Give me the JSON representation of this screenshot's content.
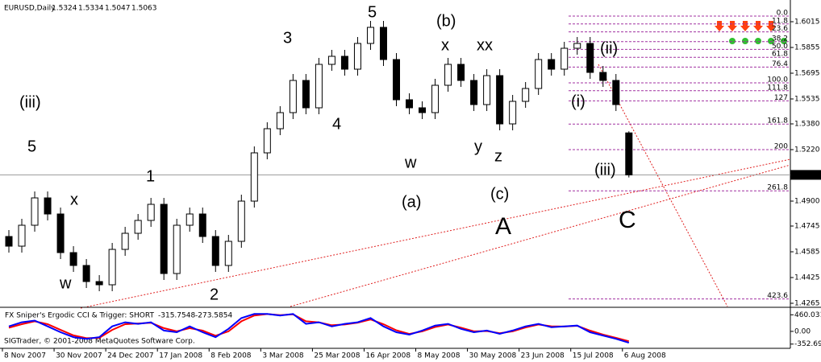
{
  "chart_data": [
    {
      "type": "candlestick",
      "symbol": "EURUSD,Daily",
      "candles": {
        "x": [
          2,
          6,
          10,
          14,
          18,
          22,
          26,
          30,
          34,
          38,
          42,
          46,
          50,
          54,
          58,
          62,
          66,
          70,
          74,
          78,
          82,
          86,
          90,
          94,
          98,
          102,
          106,
          110,
          114,
          118,
          122,
          126,
          130,
          134,
          138,
          142,
          146,
          150,
          154,
          158,
          162,
          166,
          170,
          174,
          178,
          182,
          186,
          190,
          194
        ],
        "open": [
          1.468,
          1.462,
          1.475,
          1.492,
          1.482,
          1.458,
          1.45,
          1.44,
          1.438,
          1.46,
          1.47,
          1.478,
          1.488,
          1.445,
          1.475,
          1.482,
          1.468,
          1.45,
          1.465,
          1.49,
          1.52,
          1.535,
          1.545,
          1.565,
          1.548,
          1.575,
          1.58,
          1.572,
          1.588,
          1.598,
          1.578,
          1.553,
          1.548,
          1.545,
          1.562,
          1.575,
          1.565,
          1.55,
          1.568,
          1.538,
          1.552,
          1.56,
          1.578,
          1.572,
          1.585,
          1.588,
          1.57,
          1.565,
          1.5324
        ],
        "high": [
          1.472,
          1.479,
          1.496,
          1.496,
          1.486,
          1.462,
          1.454,
          1.444,
          1.464,
          1.474,
          1.482,
          1.492,
          1.492,
          1.479,
          1.486,
          1.486,
          1.472,
          1.469,
          1.494,
          1.524,
          1.539,
          1.549,
          1.569,
          1.569,
          1.579,
          1.584,
          1.584,
          1.592,
          1.602,
          1.602,
          1.582,
          1.557,
          1.552,
          1.566,
          1.579,
          1.579,
          1.569,
          1.572,
          1.572,
          1.556,
          1.564,
          1.582,
          1.582,
          1.589,
          1.592,
          1.592,
          1.574,
          1.569,
          1.5334
        ],
        "low": [
          1.458,
          1.458,
          1.471,
          1.478,
          1.454,
          1.446,
          1.436,
          1.434,
          1.434,
          1.456,
          1.466,
          1.474,
          1.441,
          1.441,
          1.471,
          1.464,
          1.446,
          1.446,
          1.461,
          1.486,
          1.516,
          1.531,
          1.541,
          1.544,
          1.544,
          1.571,
          1.568,
          1.568,
          1.584,
          1.574,
          1.549,
          1.544,
          1.541,
          1.541,
          1.558,
          1.561,
          1.546,
          1.546,
          1.534,
          1.534,
          1.548,
          1.556,
          1.568,
          1.568,
          1.581,
          1.566,
          1.561,
          1.546,
          1.5047
        ],
        "close": [
          1.462,
          1.475,
          1.492,
          1.482,
          1.458,
          1.45,
          1.44,
          1.438,
          1.46,
          1.47,
          1.478,
          1.488,
          1.445,
          1.475,
          1.482,
          1.468,
          1.45,
          1.465,
          1.49,
          1.52,
          1.535,
          1.545,
          1.565,
          1.548,
          1.575,
          1.58,
          1.572,
          1.588,
          1.598,
          1.578,
          1.553,
          1.548,
          1.545,
          1.562,
          1.575,
          1.565,
          1.55,
          1.568,
          1.538,
          1.552,
          1.56,
          1.578,
          1.572,
          1.585,
          1.588,
          1.57,
          1.565,
          1.55,
          1.5063
        ]
      },
      "bull_color": "#ffffff",
      "bear_color": "#000000",
      "xlim": [
        0,
        244
      ],
      "xticks": [
        {
          "value": 0,
          "label": "8 Nov 2007"
        },
        {
          "value": 16,
          "label": "30 Nov 2007"
        },
        {
          "value": 32,
          "label": "24 Dec 2007"
        },
        {
          "value": 48,
          "label": "17 Jan 2008"
        },
        {
          "value": 64,
          "label": "8 Feb 2008"
        },
        {
          "value": 80,
          "label": "3 Mar 2008"
        },
        {
          "value": 96,
          "label": "25 Mar 2008"
        },
        {
          "value": 112,
          "label": "16 Apr 2008"
        },
        {
          "value": 128,
          "label": "8 May 2008"
        },
        {
          "value": 144,
          "label": "30 May 2008"
        },
        {
          "value": 160,
          "label": "23 Jun 2008"
        },
        {
          "value": 176,
          "label": "15 Jul 2008"
        },
        {
          "value": 192,
          "label": "6 Aug 2008"
        }
      ],
      "ylim": [
        1.4245,
        1.615
      ],
      "yticks": [
        1.6015,
        1.5855,
        1.5695,
        1.5535,
        {
          "value": 1.538,
          "label": "1.5380"
        },
        {
          "value": 1.522,
          "label": "1.5220"
        },
        {
          "value": 1.49,
          "label": "1.4900"
        },
        1.4745,
        1.4585,
        1.4425,
        1.4265
      ],
      "fib_levels": {
        "labels": [
          "0.0",
          "11.8",
          "23.6",
          "38.2",
          "50.0",
          "61.8",
          "76.4",
          "100.0",
          "111.8",
          "127",
          "161.8",
          "200",
          "261.8",
          "423.6"
        ],
        "prices": [
          1.605,
          1.6001,
          1.5952,
          1.5891,
          1.5843,
          1.5794,
          1.5733,
          1.5635,
          1.5586,
          1.5523,
          1.5379,
          1.522,
          1.4964,
          1.4292
        ],
        "color": "#a030a0"
      },
      "annotations": [
        {
          "text": "(iii)",
          "color": "#1010ff"
        },
        {
          "text": "5",
          "color": "#228b22"
        },
        {
          "text": "x",
          "color": "#228b22"
        },
        {
          "text": "w",
          "color": "#228b22"
        },
        {
          "text": "1",
          "color": "#228b22"
        },
        {
          "text": "2",
          "color": "#228b22"
        },
        {
          "text": "3",
          "color": "#228b22"
        },
        {
          "text": "4",
          "color": "#228b22"
        },
        {
          "text": "5",
          "color": "#228b22"
        },
        {
          "text": "w",
          "color": "#228b22"
        },
        {
          "text": "(a)",
          "color": "#1010ff"
        },
        {
          "text": "(b)",
          "color": "#1010ff"
        },
        {
          "text": "x",
          "color": "#228b22"
        },
        {
          "text": "xx",
          "color": "#228b22"
        },
        {
          "text": "y",
          "color": "#228b22"
        },
        {
          "text": "z",
          "color": "#228b22"
        },
        {
          "text": "(c)",
          "color": "#1010ff"
        },
        {
          "text": "A",
          "color": "#ff0000"
        },
        {
          "text": "(ii)",
          "color": "#1010ff"
        },
        {
          "text": "(i)",
          "color": "#1010ff"
        },
        {
          "text": "(iii)",
          "color": "#1010ff"
        },
        {
          "text": "C",
          "color": "#ff0000"
        }
      ],
      "copyright": "SIGTrader, © 2001-2008 MetaQuotes Software Corp."
    },
    {
      "type": "line",
      "title": "FX Sniper's Ergodic CCI & Trigger: SHORT",
      "x": [
        2,
        6,
        10,
        14,
        18,
        22,
        26,
        30,
        34,
        38,
        42,
        46,
        50,
        54,
        58,
        62,
        66,
        70,
        74,
        78,
        82,
        86,
        90,
        94,
        98,
        102,
        106,
        110,
        114,
        118,
        122,
        126,
        130,
        134,
        138,
        142,
        146,
        150,
        154,
        158,
        162,
        166,
        170,
        174,
        178,
        182,
        186,
        190,
        194
      ],
      "series": [
        {
          "color": "#0000ff",
          "values": [
            138,
            253,
            299,
            138,
            -23,
            -161,
            -207,
            -161,
            138,
            253,
            207,
            253,
            23,
            -23,
            138,
            -23,
            -161,
            69,
            368,
            483,
            483,
            437,
            483,
            207,
            253,
            138,
            207,
            253,
            368,
            138,
            -23,
            -92,
            23,
            161,
            207,
            69,
            -23,
            23,
            -69,
            23,
            138,
            207,
            115,
            138,
            161,
            -23,
            -115,
            -207,
            -315.7548
          ]
        },
        {
          "color": "#ff0000",
          "values": [
            100,
            200,
            280,
            200,
            40,
            -110,
            -190,
            -180,
            40,
            200,
            220,
            240,
            90,
            0,
            90,
            20,
            -120,
            0,
            280,
            440,
            480,
            450,
            470,
            280,
            250,
            170,
            190,
            240,
            330,
            200,
            30,
            -70,
            0,
            120,
            190,
            100,
            0,
            10,
            -50,
            0,
            110,
            190,
            140,
            135,
            155,
            20,
            -90,
            -180,
            -273.5854
          ]
        }
      ],
      "xlim": [
        0,
        244
      ],
      "ylim": [
        -470,
        645
      ],
      "yticks": [
        460.0312,
        {
          "value": 0,
          "label": "0.00"
        },
        -352.697
      ]
    }
  ]
}
